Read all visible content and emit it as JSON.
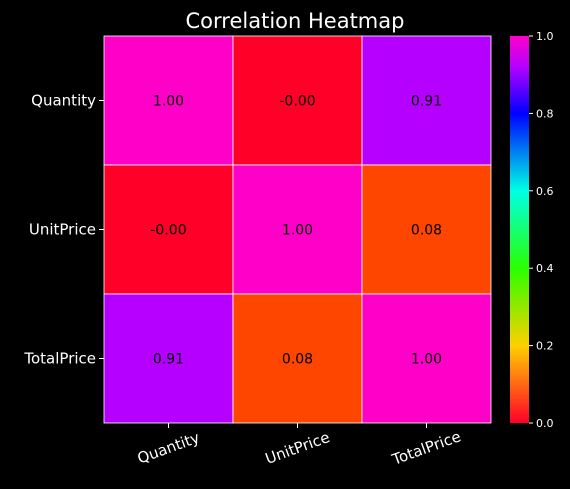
{
  "chart_data": {
    "type": "heatmap",
    "title": "Correlation Heatmap",
    "x_labels": [
      "Quantity",
      "UnitPrice",
      "TotalPrice"
    ],
    "y_labels": [
      "Quantity",
      "UnitPrice",
      "TotalPrice"
    ],
    "values": [
      [
        1.0,
        -0.0,
        0.91
      ],
      [
        -0.0,
        1.0,
        0.08
      ],
      [
        0.91,
        0.08,
        1.0
      ]
    ],
    "cell_labels": [
      [
        "1.00",
        "-0.00",
        "0.91"
      ],
      [
        "-0.00",
        "1.00",
        "0.08"
      ],
      [
        "0.91",
        "0.08",
        "1.00"
      ]
    ],
    "colorbar": {
      "range": [
        0,
        1
      ],
      "ticks": [
        "0.0",
        "0.2",
        "0.4",
        "0.6",
        "0.8",
        "1.0"
      ],
      "colormap": "gist_rainbow_r",
      "gridlines": "white"
    },
    "xlabel": "",
    "ylabel": ""
  }
}
